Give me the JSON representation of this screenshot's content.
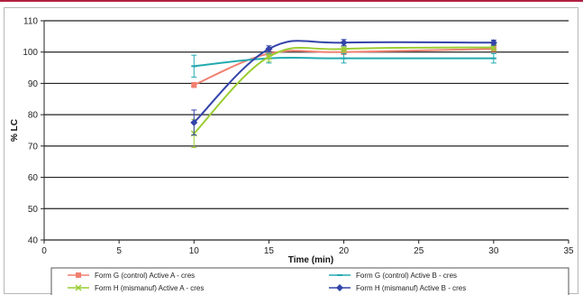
{
  "chart_data": {
    "type": "line",
    "title": "",
    "xlabel": "Time (min)",
    "ylabel": "% LC",
    "xlim": [
      0,
      35
    ],
    "ylim": [
      40,
      110
    ],
    "x_ticks": [
      0,
      5,
      10,
      15,
      20,
      25,
      30,
      35
    ],
    "y_ticks": [
      40,
      50,
      60,
      70,
      80,
      90,
      100,
      110
    ],
    "grid": "horizontal",
    "legend_position": "bottom",
    "x": [
      10,
      15,
      20,
      30
    ],
    "series": [
      {
        "name": "Form G (control) Active A - cres",
        "color": "#f08070",
        "marker": "square",
        "values": [
          89.5,
          99.5,
          100,
          101
        ],
        "error": [
          0.8,
          0.8,
          0.8,
          0.8
        ]
      },
      {
        "name": "Form G (control) Active B - cres",
        "color": "#22aab0",
        "marker": "dash",
        "values": [
          95.5,
          98,
          98,
          98
        ],
        "error": [
          3.5,
          1.5,
          1.5,
          1.5
        ]
      },
      {
        "name": "Form H (mismanuf) Active A - cres",
        "color": "#9acd32",
        "marker": "x",
        "values": [
          74,
          98.5,
          101,
          101.5
        ],
        "error": [
          4.5,
          1.5,
          1,
          1
        ]
      },
      {
        "name": "Form H (mismanuf) Active B - cres",
        "color": "#3344aa",
        "marker": "diamond",
        "values": [
          77.5,
          101,
          103,
          103
        ],
        "error": [
          4,
          1,
          1,
          0.8
        ]
      }
    ]
  }
}
